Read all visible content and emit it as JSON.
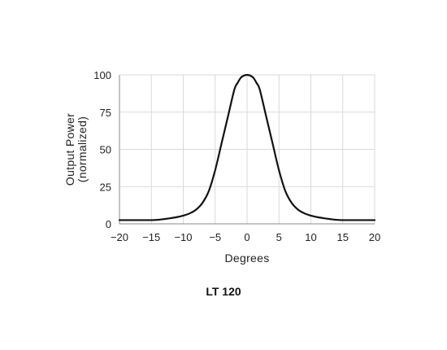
{
  "caption": "LT 120",
  "chart_data": {
    "type": "line",
    "xlabel": "Degrees",
    "ylabel_lines": [
      "Output Power",
      "(normalized)"
    ],
    "xlim": [
      -20,
      20
    ],
    "ylim": [
      0,
      100
    ],
    "xticks": [
      -20,
      -15,
      -10,
      -5,
      0,
      5,
      10,
      15,
      20
    ],
    "xtick_labels": [
      "−20",
      "−15",
      "−10",
      "−5",
      "0",
      "5",
      "10",
      "15",
      "20"
    ],
    "yticks": [
      0,
      25,
      50,
      75,
      100
    ],
    "ytick_labels": [
      "0",
      "25",
      "50",
      "75",
      "100"
    ],
    "grid": true,
    "colors": {
      "line": "#111111",
      "grid": "#d9d9d9",
      "axis": "#888888"
    },
    "series": [
      {
        "x": [
          -20,
          -17,
          -15,
          -14,
          -13,
          -12,
          -11,
          -10,
          -9,
          -8,
          -7,
          -6,
          -5,
          -4,
          -3,
          -2,
          -1.5,
          -1,
          -0.5,
          0,
          0.5,
          1,
          1.5,
          2,
          3,
          4,
          5,
          6,
          7,
          8,
          9,
          10,
          11,
          12,
          13,
          14,
          15,
          17,
          20
        ],
        "y": [
          2.5,
          2.5,
          2.5,
          2.7,
          3.2,
          3.8,
          4.5,
          5.5,
          7,
          9.5,
          14,
          22,
          36,
          54,
          72,
          90,
          94.5,
          98,
          99.5,
          100,
          99.5,
          98,
          94.5,
          90,
          72,
          54,
          36,
          22,
          14,
          9.5,
          7,
          5.5,
          4.5,
          3.8,
          3.2,
          2.7,
          2.5,
          2.5,
          2.5
        ]
      }
    ]
  }
}
